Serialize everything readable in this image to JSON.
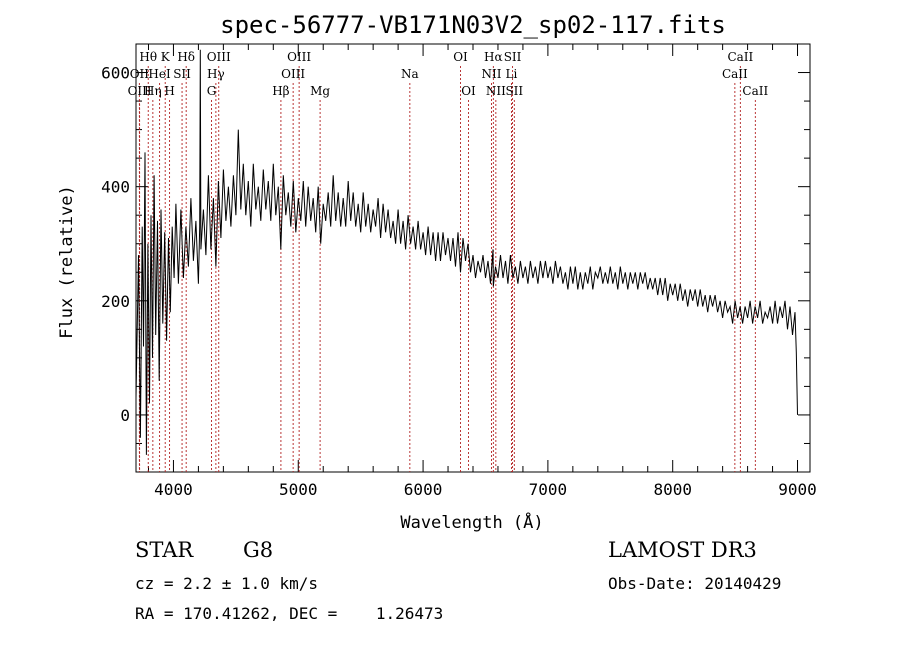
{
  "chart_data": {
    "type": "line",
    "title": "spec-56777-VB171N03V2_sp02-117.fits",
    "xlabel": "Wavelength (Å)",
    "ylabel": "Flux (relative)",
    "xlim": [
      3700,
      9100
    ],
    "ylim": [
      -100,
      650
    ],
    "xticks": [
      4000,
      5000,
      6000,
      7000,
      8000,
      9000
    ],
    "yticks": [
      0,
      200,
      400,
      600
    ],
    "x_minor_step": 200,
    "y_minor_step": 50,
    "grid": false,
    "series": [
      {
        "name": "flux",
        "points": [
          [
            3700,
            30
          ],
          [
            3720,
            280
          ],
          [
            3735,
            -40
          ],
          [
            3750,
            330
          ],
          [
            3760,
            120
          ],
          [
            3772,
            460
          ],
          [
            3783,
            -70
          ],
          [
            3795,
            300
          ],
          [
            3808,
            20
          ],
          [
            3820,
            350
          ],
          [
            3832,
            100
          ],
          [
            3845,
            420
          ],
          [
            3858,
            140
          ],
          [
            3872,
            340
          ],
          [
            3886,
            60
          ],
          [
            3900,
            360
          ],
          [
            3915,
            160
          ],
          [
            3930,
            320
          ],
          [
            3945,
            130
          ],
          [
            3960,
            310
          ],
          [
            3975,
            180
          ],
          [
            3990,
            330
          ],
          [
            4005,
            240
          ],
          [
            4020,
            370
          ],
          [
            4040,
            230
          ],
          [
            4060,
            360
          ],
          [
            4080,
            240
          ],
          [
            4100,
            330
          ],
          [
            4120,
            260
          ],
          [
            4140,
            380
          ],
          [
            4160,
            270
          ],
          [
            4180,
            340
          ],
          [
            4200,
            230
          ],
          [
            4210,
            330
          ],
          [
            4215,
            640
          ],
          [
            4220,
            290
          ],
          [
            4240,
            360
          ],
          [
            4260,
            280
          ],
          [
            4280,
            420
          ],
          [
            4300,
            290
          ],
          [
            4320,
            380
          ],
          [
            4340,
            260
          ],
          [
            4360,
            410
          ],
          [
            4380,
            310
          ],
          [
            4400,
            430
          ],
          [
            4420,
            340
          ],
          [
            4440,
            400
          ],
          [
            4460,
            330
          ],
          [
            4480,
            420
          ],
          [
            4500,
            350
          ],
          [
            4520,
            500
          ],
          [
            4540,
            360
          ],
          [
            4560,
            440
          ],
          [
            4580,
            350
          ],
          [
            4600,
            410
          ],
          [
            4620,
            330
          ],
          [
            4640,
            440
          ],
          [
            4660,
            360
          ],
          [
            4680,
            400
          ],
          [
            4700,
            340
          ],
          [
            4720,
            430
          ],
          [
            4740,
            360
          ],
          [
            4760,
            410
          ],
          [
            4780,
            340
          ],
          [
            4800,
            440
          ],
          [
            4820,
            350
          ],
          [
            4840,
            400
          ],
          [
            4860,
            290
          ],
          [
            4880,
            420
          ],
          [
            4900,
            350
          ],
          [
            4920,
            390
          ],
          [
            4940,
            330
          ],
          [
            4960,
            410
          ],
          [
            4980,
            320
          ],
          [
            5000,
            380
          ],
          [
            5020,
            340
          ],
          [
            5040,
            410
          ],
          [
            5060,
            330
          ],
          [
            5080,
            400
          ],
          [
            5100,
            340
          ],
          [
            5120,
            380
          ],
          [
            5140,
            320
          ],
          [
            5160,
            400
          ],
          [
            5180,
            300
          ],
          [
            5200,
            370
          ],
          [
            5220,
            340
          ],
          [
            5240,
            390
          ],
          [
            5260,
            330
          ],
          [
            5280,
            420
          ],
          [
            5300,
            340
          ],
          [
            5320,
            390
          ],
          [
            5340,
            330
          ],
          [
            5360,
            380
          ],
          [
            5380,
            330
          ],
          [
            5400,
            410
          ],
          [
            5420,
            340
          ],
          [
            5440,
            390
          ],
          [
            5460,
            330
          ],
          [
            5480,
            370
          ],
          [
            5500,
            320
          ],
          [
            5520,
            390
          ],
          [
            5540,
            330
          ],
          [
            5560,
            370
          ],
          [
            5580,
            320
          ],
          [
            5600,
            360
          ],
          [
            5620,
            330
          ],
          [
            5640,
            380
          ],
          [
            5660,
            310
          ],
          [
            5680,
            370
          ],
          [
            5700,
            320
          ],
          [
            5720,
            360
          ],
          [
            5740,
            310
          ],
          [
            5760,
            340
          ],
          [
            5780,
            300
          ],
          [
            5800,
            360
          ],
          [
            5820,
            300
          ],
          [
            5840,
            340
          ],
          [
            5860,
            290
          ],
          [
            5880,
            350
          ],
          [
            5900,
            300
          ],
          [
            5920,
            330
          ],
          [
            5940,
            290
          ],
          [
            5960,
            340
          ],
          [
            5980,
            290
          ],
          [
            6000,
            320
          ],
          [
            6020,
            280
          ],
          [
            6040,
            330
          ],
          [
            6060,
            280
          ],
          [
            6080,
            320
          ],
          [
            6100,
            270
          ],
          [
            6120,
            320
          ],
          [
            6140,
            270
          ],
          [
            6160,
            320
          ],
          [
            6180,
            280
          ],
          [
            6200,
            310
          ],
          [
            6220,
            270
          ],
          [
            6240,
            310
          ],
          [
            6260,
            260
          ],
          [
            6280,
            320
          ],
          [
            6300,
            250
          ],
          [
            6320,
            310
          ],
          [
            6340,
            270
          ],
          [
            6360,
            300
          ],
          [
            6380,
            250
          ],
          [
            6400,
            280
          ],
          [
            6420,
            240
          ],
          [
            6440,
            270
          ],
          [
            6460,
            250
          ],
          [
            6480,
            280
          ],
          [
            6500,
            240
          ],
          [
            6520,
            270
          ],
          [
            6540,
            230
          ],
          [
            6560,
            290
          ],
          [
            6563,
            225
          ],
          [
            6580,
            260
          ],
          [
            6600,
            240
          ],
          [
            6620,
            280
          ],
          [
            6640,
            240
          ],
          [
            6660,
            270
          ],
          [
            6680,
            230
          ],
          [
            6700,
            280
          ],
          [
            6720,
            240
          ],
          [
            6740,
            260
          ],
          [
            6760,
            230
          ],
          [
            6780,
            270
          ],
          [
            6800,
            240
          ],
          [
            6820,
            260
          ],
          [
            6840,
            230
          ],
          [
            6860,
            270
          ],
          [
            6880,
            240
          ],
          [
            6900,
            260
          ],
          [
            6920,
            230
          ],
          [
            6940,
            270
          ],
          [
            6960,
            240
          ],
          [
            6980,
            270
          ],
          [
            7000,
            240
          ],
          [
            7020,
            260
          ],
          [
            7040,
            230
          ],
          [
            7060,
            270
          ],
          [
            7080,
            240
          ],
          [
            7100,
            260
          ],
          [
            7120,
            230
          ],
          [
            7140,
            250
          ],
          [
            7160,
            220
          ],
          [
            7180,
            260
          ],
          [
            7200,
            230
          ],
          [
            7220,
            260
          ],
          [
            7240,
            220
          ],
          [
            7260,
            250
          ],
          [
            7280,
            220
          ],
          [
            7300,
            250
          ],
          [
            7320,
            230
          ],
          [
            7340,
            260
          ],
          [
            7360,
            220
          ],
          [
            7380,
            250
          ],
          [
            7400,
            240
          ],
          [
            7420,
            260
          ],
          [
            7440,
            230
          ],
          [
            7460,
            250
          ],
          [
            7480,
            230
          ],
          [
            7500,
            260
          ],
          [
            7520,
            230
          ],
          [
            7540,
            250
          ],
          [
            7560,
            220
          ],
          [
            7580,
            260
          ],
          [
            7600,
            230
          ],
          [
            7620,
            250
          ],
          [
            7640,
            220
          ],
          [
            7660,
            250
          ],
          [
            7680,
            230
          ],
          [
            7700,
            250
          ],
          [
            7720,
            220
          ],
          [
            7740,
            250
          ],
          [
            7760,
            230
          ],
          [
            7780,
            250
          ],
          [
            7800,
            220
          ],
          [
            7820,
            240
          ],
          [
            7840,
            220
          ],
          [
            7860,
            240
          ],
          [
            7880,
            210
          ],
          [
            7900,
            240
          ],
          [
            7920,
            210
          ],
          [
            7940,
            240
          ],
          [
            7960,
            200
          ],
          [
            7980,
            230
          ],
          [
            8000,
            210
          ],
          [
            8020,
            230
          ],
          [
            8040,
            200
          ],
          [
            8060,
            230
          ],
          [
            8080,
            200
          ],
          [
            8100,
            220
          ],
          [
            8120,
            190
          ],
          [
            8140,
            220
          ],
          [
            8160,
            200
          ],
          [
            8180,
            220
          ],
          [
            8200,
            190
          ],
          [
            8220,
            220
          ],
          [
            8240,
            190
          ],
          [
            8260,
            210
          ],
          [
            8280,
            180
          ],
          [
            8300,
            210
          ],
          [
            8320,
            190
          ],
          [
            8340,
            210
          ],
          [
            8360,
            180
          ],
          [
            8380,
            200
          ],
          [
            8400,
            170
          ],
          [
            8420,
            200
          ],
          [
            8440,
            180
          ],
          [
            8460,
            190
          ],
          [
            8480,
            160
          ],
          [
            8500,
            200
          ],
          [
            8520,
            170
          ],
          [
            8540,
            190
          ],
          [
            8560,
            160
          ],
          [
            8580,
            190
          ],
          [
            8600,
            170
          ],
          [
            8620,
            200
          ],
          [
            8640,
            160
          ],
          [
            8660,
            190
          ],
          [
            8680,
            170
          ],
          [
            8700,
            200
          ],
          [
            8720,
            160
          ],
          [
            8740,
            180
          ],
          [
            8760,
            170
          ],
          [
            8780,
            190
          ],
          [
            8800,
            160
          ],
          [
            8820,
            200
          ],
          [
            8840,
            160
          ],
          [
            8860,
            190
          ],
          [
            8880,
            170
          ],
          [
            8900,
            200
          ],
          [
            8920,
            150
          ],
          [
            8940,
            190
          ],
          [
            8960,
            140
          ],
          [
            8980,
            180
          ],
          [
            8990,
            110
          ],
          [
            9000,
            0
          ]
        ]
      }
    ],
    "lines": [
      {
        "label": "Hθ",
        "wavelength": 3798,
        "row": 1
      },
      {
        "label": "OII",
        "wavelength": 3727,
        "row": 2
      },
      {
        "label": "OIII",
        "wavelength": 3729,
        "row": 3
      },
      {
        "label": "K",
        "wavelength": 3934,
        "row": 1
      },
      {
        "label": "HeI",
        "wavelength": 3889,
        "row": 2
      },
      {
        "label": "Hη",
        "wavelength": 3835,
        "row": 3
      },
      {
        "label": "Hδ",
        "wavelength": 4102,
        "row": 1
      },
      {
        "label": "SII",
        "wavelength": 4069,
        "row": 2
      },
      {
        "label": "H",
        "wavelength": 3969,
        "row": 3
      },
      {
        "label": "OIII",
        "wavelength": 4363,
        "row": 1
      },
      {
        "label": "Hγ",
        "wavelength": 4340,
        "row": 2
      },
      {
        "label": "G",
        "wavelength": 4305,
        "row": 3
      },
      {
        "label": "OIII",
        "wavelength": 5007,
        "row": 1
      },
      {
        "label": "OIII",
        "wavelength": 4959,
        "row": 2
      },
      {
        "label": "Hβ",
        "wavelength": 4861,
        "row": 3
      },
      {
        "label": "Mg",
        "wavelength": 5175,
        "row": 3
      },
      {
        "label": "Na",
        "wavelength": 5894,
        "row": 2
      },
      {
        "label": "OI",
        "wavelength": 6300,
        "row": 1
      },
      {
        "label": "OI",
        "wavelength": 6364,
        "row": 3
      },
      {
        "label": "Hα",
        "wavelength": 6563,
        "row": 1
      },
      {
        "label": "NII",
        "wavelength": 6548,
        "row": 2
      },
      {
        "label": "NII",
        "wavelength": 6583,
        "row": 3
      },
      {
        "label": "SII",
        "wavelength": 6717,
        "row": 1
      },
      {
        "label": "Li",
        "wavelength": 6708,
        "row": 2
      },
      {
        "label": "SII",
        "wavelength": 6731,
        "row": 3
      },
      {
        "label": "CaII",
        "wavelength": 8542,
        "row": 1
      },
      {
        "label": "CaII",
        "wavelength": 8498,
        "row": 2
      },
      {
        "label": "CaII",
        "wavelength": 8662,
        "row": 3
      }
    ]
  },
  "info": {
    "class": "STAR",
    "subclass": "G8",
    "survey": "LAMOST DR3",
    "cz": "cz = 2.2 ± 1.0 km/s",
    "obs_date": "Obs-Date: 20140429",
    "radec": "RA = 170.41262, DEC =    1.26473"
  },
  "colors": {
    "line_marker": "#b22222",
    "spectrum": "#000000",
    "axes": "#000000"
  }
}
